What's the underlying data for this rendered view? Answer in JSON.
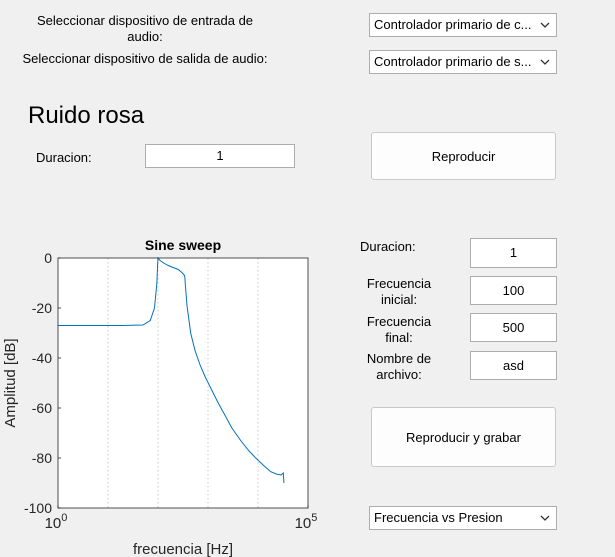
{
  "input_device": {
    "label": "Seleccionar dispositivo de entrada de audio:",
    "value": "Controlador primario de c..."
  },
  "output_device": {
    "label": "Seleccionar dispositivo de salida de audio:",
    "value": "Controlador primario de s..."
  },
  "pink_noise": {
    "title": "Ruido rosa",
    "duration_label": "Duracion:",
    "duration_value": "1",
    "play_button": "Reproducir"
  },
  "sweep": {
    "duration_label": "Duracion:",
    "duration_value": "1",
    "start_freq_label": "Frecuencia inicial:",
    "start_freq_value": "100",
    "end_freq_label": "Frecuencia final:",
    "end_freq_value": "500",
    "filename_label": "Nombre de archivo:",
    "filename_value": "asd",
    "record_button": "Reproducir y grabar",
    "plot_mode": "Frecuencia vs Presion"
  },
  "chart_data": {
    "type": "line",
    "title": "Sine sweep",
    "xlabel": "frecuencia [Hz]",
    "ylabel": "Amplitud [dB]",
    "x_scale": "log",
    "xlim": [
      1,
      100000
    ],
    "ylim": [
      -100,
      0
    ],
    "x_ticks": [
      {
        "base": "10",
        "exp": "0",
        "value": 1
      },
      {
        "base": "10",
        "exp": "5",
        "value": 100000
      }
    ],
    "y_ticks": [
      "0",
      "-20",
      "-40",
      "-60",
      "-80",
      "-100"
    ],
    "grid": true,
    "line_color": "#0072bd",
    "series": [
      {
        "x": [
          1,
          20,
          50,
          70,
          85,
          95,
          98,
          100,
          110,
          130,
          160,
          200,
          250,
          300,
          340,
          345,
          350,
          380,
          450,
          550,
          700,
          900,
          1200,
          1600,
          2200,
          3000,
          4500,
          6500,
          9000,
          13000,
          18000,
          24000,
          29000,
          32000,
          32500,
          33000
        ],
        "y": [
          -27,
          -27,
          -26.8,
          -25,
          -20,
          -10,
          -3,
          0,
          -1,
          -2,
          -3,
          -3.8,
          -4.5,
          -5.8,
          -7,
          -8,
          -10,
          -19,
          -30,
          -37,
          -43,
          -48,
          -53,
          -58,
          -63,
          -68,
          -73,
          -77,
          -80,
          -83,
          -85.5,
          -86.5,
          -86.8,
          -86,
          -88,
          -90
        ]
      }
    ]
  }
}
